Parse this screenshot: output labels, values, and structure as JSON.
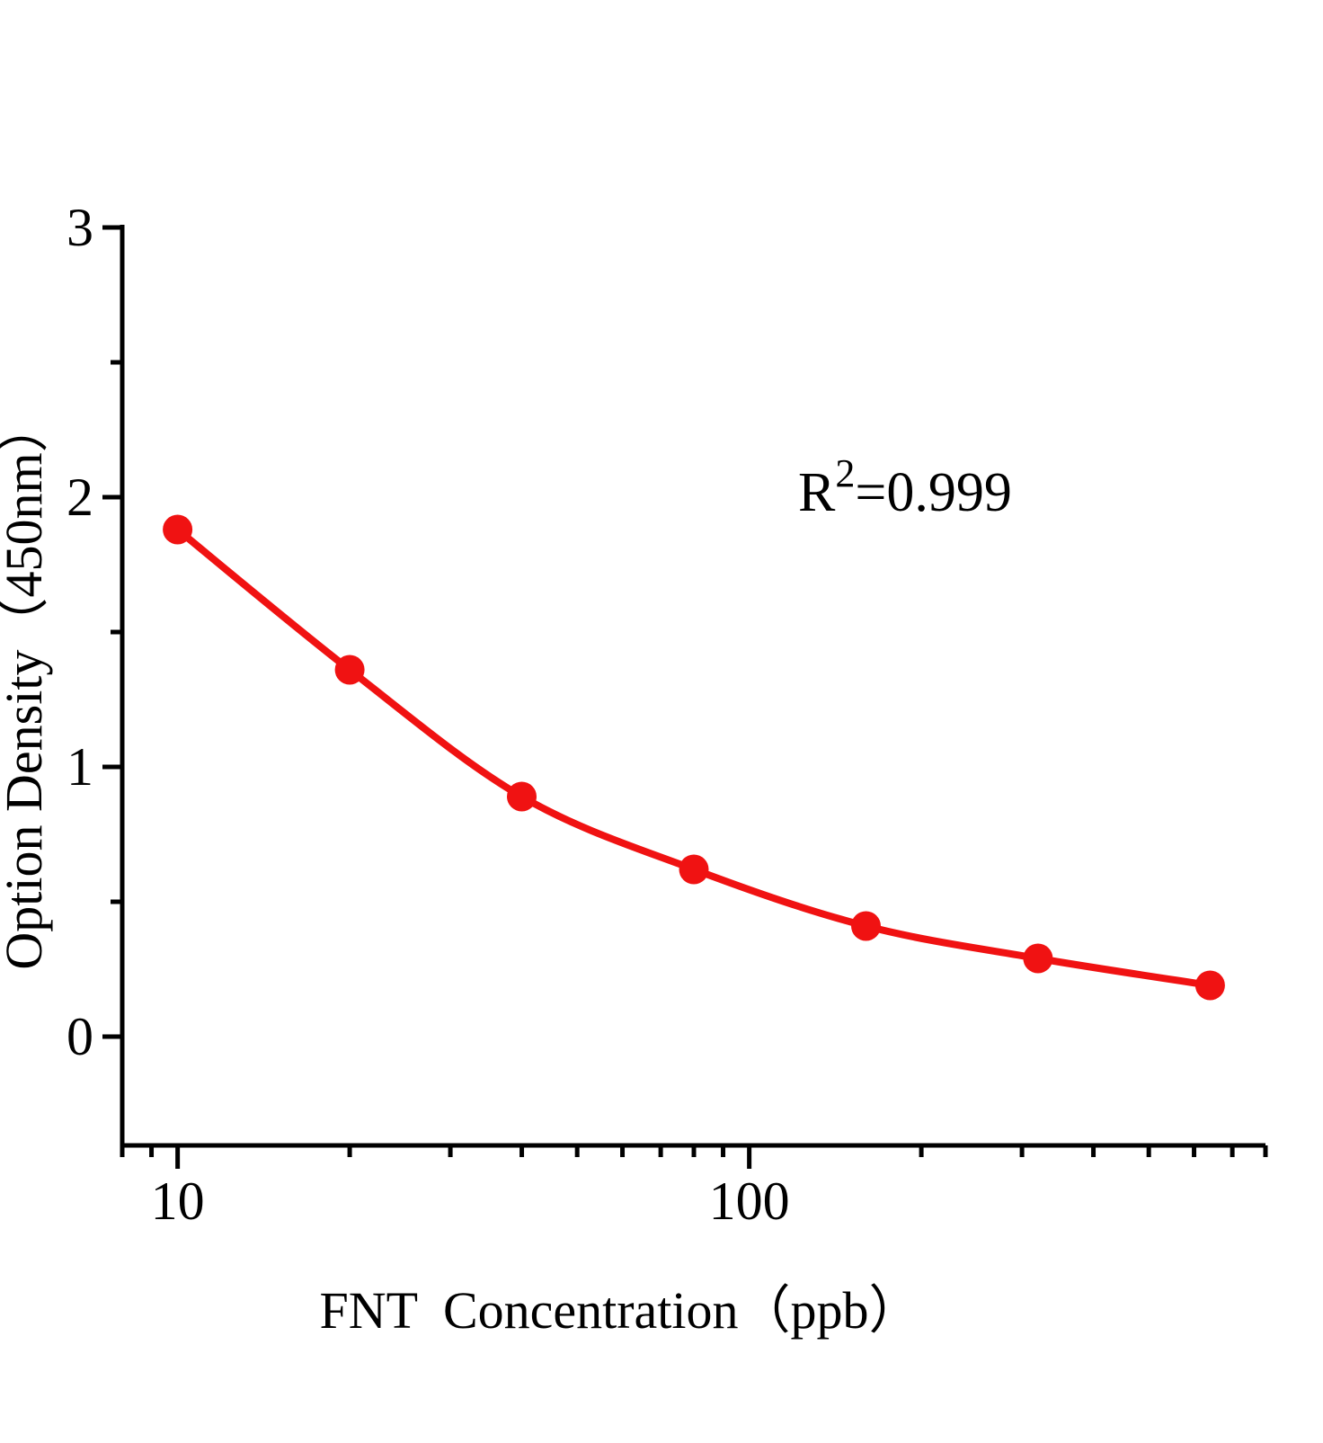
{
  "figure": {
    "background": "#ffffff"
  },
  "chart_data": {
    "type": "scatter",
    "title": "",
    "xlabel": "FNT  Concentration（ppb）",
    "ylabel": "Option Density（450nm）",
    "legend": "none",
    "grid": false,
    "x_axis": {
      "scale": "log10",
      "range": [
        8,
        800
      ],
      "major_ticks": [
        {
          "value": 10,
          "label": "10"
        },
        {
          "value": 100,
          "label": "100"
        }
      ],
      "minor_ticks": [
        8,
        9,
        20,
        30,
        40,
        50,
        60,
        70,
        80,
        90,
        200,
        300,
        400,
        500,
        600,
        700,
        800
      ]
    },
    "y_axis": {
      "scale": "linear",
      "range": [
        -0.4,
        3
      ],
      "major_ticks": [
        {
          "value": 0,
          "label": "0"
        },
        {
          "value": 1,
          "label": "1"
        },
        {
          "value": 2,
          "label": "2"
        },
        {
          "value": 3,
          "label": "3"
        }
      ],
      "minor_ticks": [
        0.5,
        1.5,
        2.5
      ]
    },
    "x": [
      10,
      20,
      40,
      80,
      160,
      320,
      640
    ],
    "y": [
      1.88,
      1.36,
      0.89,
      0.62,
      0.41,
      0.29,
      0.19
    ],
    "annotation": {
      "base": "R",
      "superscript": "2",
      "value": "=0.999"
    },
    "colors": {
      "curve": "#f01212",
      "marker": "#f01212",
      "axis": "#000000",
      "text": "#000000"
    }
  }
}
